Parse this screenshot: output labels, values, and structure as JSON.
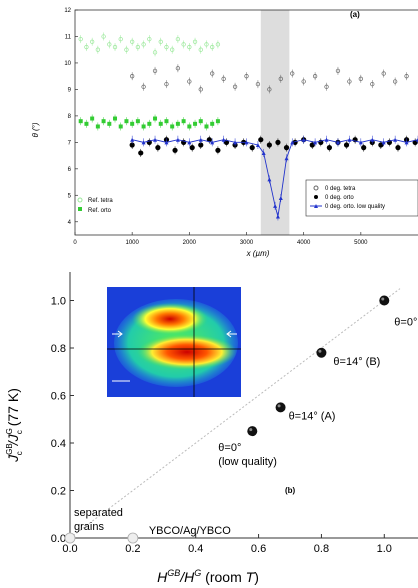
{
  "chart_data": [
    {
      "panel": "(a)",
      "type": "scatter",
      "xlabel": "x (µm)",
      "ylabel": "θ (°)",
      "xlim": [
        0,
        6000
      ],
      "ylim": [
        3.5,
        12
      ],
      "xticks": [
        0,
        1000,
        2000,
        3000,
        4000,
        5000
      ],
      "yticks": [
        4,
        5,
        6,
        7,
        8,
        9,
        10,
        11,
        12
      ],
      "shaded_band": {
        "x": [
          3250,
          3750
        ]
      },
      "legend_left": {
        "placement": "bottom-left",
        "entries": [
          "Ref. tetra",
          "Ref. orto"
        ]
      },
      "legend_right": {
        "placement": "bottom-right",
        "entries": [
          "0 deg. tetra",
          "0 deg. orto",
          "0 deg. orto. low quality"
        ]
      },
      "series": [
        {
          "name": "Ref. tetra",
          "color": "#9ae89a",
          "x": [
            100,
            200,
            300,
            400,
            500,
            600,
            700,
            800,
            900,
            1000,
            1100,
            1200,
            1300,
            1400,
            1500,
            1600,
            1700,
            1800,
            1900,
            2000,
            2100,
            2200,
            2300,
            2400,
            2500
          ],
          "y": [
            10.9,
            10.6,
            10.8,
            10.5,
            11.0,
            10.7,
            10.6,
            10.9,
            10.5,
            10.8,
            10.6,
            10.7,
            10.9,
            10.4,
            10.8,
            10.6,
            10.5,
            10.9,
            10.7,
            10.6,
            10.8,
            10.5,
            10.7,
            10.6,
            10.7
          ]
        },
        {
          "name": "Ref. orto",
          "color": "#33cc33",
          "x": [
            100,
            200,
            300,
            400,
            500,
            600,
            700,
            800,
            900,
            1000,
            1100,
            1200,
            1300,
            1400,
            1500,
            1600,
            1700,
            1800,
            1900,
            2000,
            2100,
            2200,
            2300,
            2400,
            2500
          ],
          "y": [
            7.8,
            7.7,
            7.9,
            7.6,
            7.8,
            7.7,
            7.9,
            7.6,
            7.8,
            7.7,
            7.8,
            7.6,
            7.7,
            7.9,
            7.7,
            7.8,
            7.6,
            7.7,
            7.8,
            7.6,
            7.7,
            7.8,
            7.6,
            7.7,
            7.8
          ]
        },
        {
          "name": "0 deg. tetra",
          "color": "#666666",
          "x": [
            1000,
            1200,
            1400,
            1600,
            1800,
            2000,
            2200,
            2400,
            2600,
            2800,
            3000,
            3200,
            3400,
            3600,
            3800,
            4000,
            4200,
            4400,
            4600,
            4800,
            5000,
            5200,
            5400,
            5600,
            5800
          ],
          "y": [
            9.5,
            9.1,
            9.7,
            9.2,
            9.8,
            9.3,
            9.0,
            9.6,
            9.4,
            9.1,
            9.5,
            9.2,
            9.0,
            9.4,
            9.6,
            9.3,
            9.5,
            9.1,
            9.7,
            9.3,
            9.4,
            9.2,
            9.6,
            9.3,
            9.5
          ]
        },
        {
          "name": "0 deg. orto",
          "color": "#000000",
          "x": [
            1000,
            1150,
            1300,
            1450,
            1600,
            1750,
            1900,
            2050,
            2200,
            2350,
            2500,
            2650,
            2800,
            2950,
            3100,
            3250,
            3400,
            3550,
            3700,
            3850,
            4000,
            4150,
            4300,
            4450,
            4600,
            4750,
            4900,
            5050,
            5200,
            5350,
            5500,
            5650,
            5800,
            5950
          ],
          "y": [
            6.9,
            6.6,
            7.0,
            6.8,
            7.1,
            6.7,
            7.0,
            6.8,
            6.9,
            7.1,
            6.7,
            7.0,
            6.9,
            7.0,
            6.8,
            7.1,
            6.9,
            7.0,
            6.8,
            7.0,
            7.1,
            6.9,
            7.0,
            6.8,
            7.0,
            6.9,
            7.1,
            6.8,
            7.0,
            6.9,
            7.0,
            6.8,
            7.1,
            7.0
          ]
        },
        {
          "name": "0 deg. orto. low quality",
          "color": "#2233cc",
          "x": [
            1000,
            1200,
            1400,
            1600,
            1800,
            2000,
            2200,
            2400,
            2600,
            2800,
            3000,
            3200,
            3300,
            3400,
            3500,
            3550,
            3600,
            3700,
            3800,
            4000,
            4200,
            4400,
            4600,
            4800,
            5000,
            5200,
            5400,
            5600,
            5800,
            6000
          ],
          "y": [
            7.1,
            7.0,
            7.1,
            7.0,
            7.1,
            7.0,
            7.1,
            7.0,
            7.1,
            7.0,
            7.0,
            6.9,
            6.6,
            5.6,
            4.6,
            4.2,
            4.9,
            6.4,
            7.0,
            7.1,
            7.0,
            7.1,
            7.0,
            7.1,
            7.0,
            7.1,
            7.0,
            7.1,
            7.0,
            7.1
          ]
        }
      ]
    },
    {
      "panel": "(b)",
      "type": "scatter",
      "xlabel": "HGB/HG (room T)",
      "ylabel": "JcGB/JcG (77 K)",
      "xlim": [
        0,
        1.05
      ],
      "ylim": [
        0,
        1.12
      ],
      "xticks": [
        0.0,
        0.2,
        0.4,
        0.6,
        0.8,
        1.0
      ],
      "yticks": [
        0.0,
        0.2,
        0.4,
        0.6,
        0.8,
        1.0
      ],
      "tick_labels": [
        "0.0",
        "0.2",
        "0.4",
        "0.6",
        "0.8",
        "1.0"
      ],
      "points": [
        {
          "x": 1.0,
          "y": 1.0,
          "label": "θ=0°",
          "style": "filled"
        },
        {
          "x": 0.8,
          "y": 0.78,
          "label": "θ=14° (B)",
          "style": "filled"
        },
        {
          "x": 0.67,
          "y": 0.55,
          "label": "θ=14° (A)",
          "style": "filled"
        },
        {
          "x": 0.58,
          "y": 0.45,
          "label": "θ=0°",
          "label2": "(low quality)",
          "style": "filled"
        },
        {
          "x": 0.0,
          "y": 0.0,
          "label": "separated",
          "label2": "grains",
          "style": "open"
        },
        {
          "x": 0.2,
          "y": 0.0,
          "label": "YBCO/Ag/YBCO",
          "style": "open"
        }
      ],
      "fit_line": {
        "x": [
          0,
          1.05
        ],
        "y": [
          0,
          1.05
        ]
      },
      "panel_label": "(b)",
      "inset": {
        "type": "heatmap",
        "colormap": "jet"
      }
    }
  ]
}
